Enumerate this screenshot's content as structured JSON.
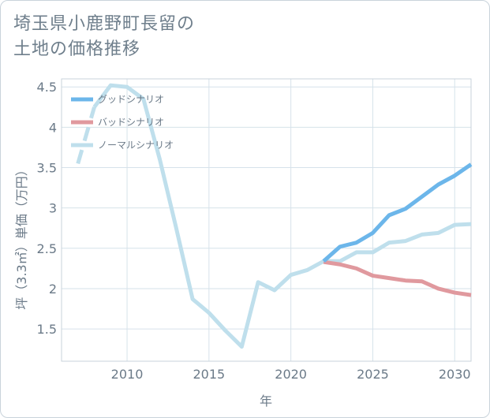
{
  "title_line1": "埼玉県小鹿野町長留の",
  "title_line2": "土地の価格推移",
  "chart_data": {
    "type": "line",
    "xlabel": "年",
    "ylabel": "坪（3.3㎡）単価（万円）",
    "xlim": [
      2006,
      2031
    ],
    "ylim": [
      1.1,
      4.6
    ],
    "x_ticks": [
      2010,
      2015,
      2020,
      2025,
      2030
    ],
    "y_ticks": [
      1.5,
      2,
      2.5,
      3,
      3.5,
      4,
      4.5
    ],
    "grid": true,
    "legend_position": "top-left",
    "series": [
      {
        "name": "グッドシナリオ",
        "color": "#6cb6ea",
        "x": [
          2022,
          2023,
          2024,
          2025,
          2026,
          2027,
          2028,
          2029,
          2030,
          2031
        ],
        "values": [
          2.34,
          2.52,
          2.57,
          2.69,
          2.91,
          2.99,
          3.14,
          3.29,
          3.4,
          3.54
        ]
      },
      {
        "name": "バッドシナリオ",
        "color": "#e0999e",
        "x": [
          2022,
          2023,
          2024,
          2025,
          2026,
          2027,
          2028,
          2029,
          2030,
          2031
        ],
        "values": [
          2.33,
          2.3,
          2.25,
          2.16,
          2.13,
          2.1,
          2.09,
          2.0,
          1.95,
          1.92
        ]
      },
      {
        "name": "ノーマルシナリオ",
        "color": "#bfdfec",
        "x": [
          2007,
          2008,
          2009,
          2010,
          2011,
          2012,
          2013,
          2014,
          2015,
          2016,
          2017,
          2018,
          2019,
          2020,
          2021,
          2022,
          2023,
          2024,
          2025,
          2026,
          2027,
          2028,
          2029,
          2030,
          2031
        ],
        "values": [
          3.55,
          4.25,
          4.52,
          4.5,
          4.35,
          3.6,
          2.75,
          1.87,
          1.7,
          1.48,
          1.28,
          2.08,
          1.98,
          2.17,
          2.23,
          2.34,
          2.34,
          2.45,
          2.45,
          2.57,
          2.59,
          2.67,
          2.69,
          2.79,
          2.8
        ],
        "dashed_until_x": 2008
      }
    ]
  }
}
